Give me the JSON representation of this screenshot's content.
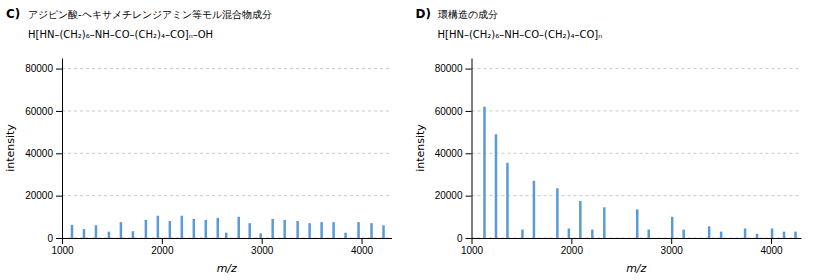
{
  "chart_data": [
    {
      "type": "bar",
      "title": "アジピン酸-ヘキサメチレンジアミン等モル混合物成分",
      "subtitle": "H[HN–(CH₂)₆–NH–CO–(CH₂)₄–CO]ₙ–OH",
      "annotations": [
        "C)"
      ],
      "x": [
        1100,
        1220,
        1340,
        1470,
        1590,
        1710,
        1840,
        1960,
        2080,
        2200,
        2320,
        2440,
        2560,
        2645,
        2770,
        2880,
        2990,
        3110,
        3230,
        3360,
        3480,
        3600,
        3720,
        3840,
        3970,
        4100,
        4220
      ],
      "values": [
        6200,
        4200,
        6000,
        3000,
        7500,
        3200,
        8500,
        10500,
        8000,
        10500,
        9000,
        8500,
        9500,
        2500,
        10000,
        7000,
        2200,
        9000,
        8500,
        8000,
        7000,
        7500,
        7500,
        2500,
        7500,
        7000,
        6000
      ],
      "color": "#5B9BD5",
      "xlim": [
        1000,
        4300
      ],
      "xticks": [
        1000,
        2000,
        3000,
        4000
      ],
      "ylim": [
        0,
        85000
      ],
      "yticks": [
        0,
        20000,
        40000,
        60000,
        80000
      ],
      "x_label": "m/z",
      "y_label": "intensity",
      "grid": true
    },
    {
      "type": "bar",
      "title": "環構造の成分",
      "subtitle": "H[HN–(CH₂)₆–NH–CO–(CH₂)₄–CO]ₙ",
      "annotations": [
        "D)"
      ],
      "x": [
        1130,
        1245,
        1360,
        1510,
        1625,
        1860,
        1975,
        2090,
        2210,
        2330,
        2660,
        2775,
        3010,
        3125,
        3380,
        3500,
        3740,
        3860,
        4010,
        4130,
        4245
      ],
      "values": [
        62000,
        49000,
        35500,
        4000,
        27000,
        23500,
        4500,
        17500,
        4000,
        14500,
        13500,
        4000,
        10000,
        4000,
        5500,
        3000,
        4500,
        2000,
        4500,
        3000,
        3000
      ],
      "color": "#5B9BD5",
      "xlim": [
        1000,
        4300
      ],
      "xticks": [
        1000,
        2000,
        3000,
        4000
      ],
      "ylim": [
        0,
        85000
      ],
      "yticks": [
        0,
        20000,
        40000,
        60000,
        80000
      ],
      "x_label": "m/z",
      "y_label": "intensity",
      "grid": true
    }
  ]
}
